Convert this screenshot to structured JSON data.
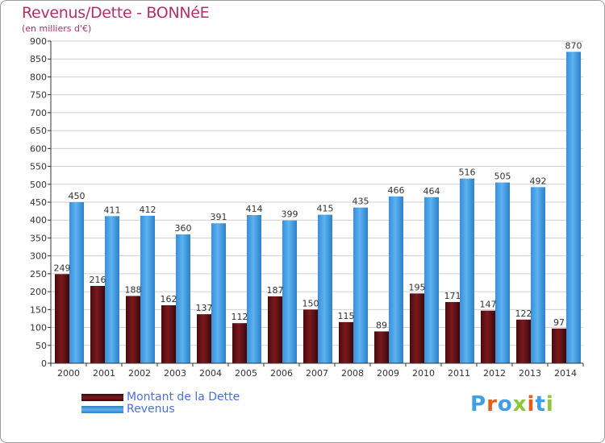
{
  "header": {
    "title": "Revenus/Dette - BONNéE",
    "subtitle": "(en milliers d'€)"
  },
  "legend": {
    "items": [
      {
        "label": "Montant de la Dette",
        "color": "#6b0f14"
      },
      {
        "label": "Revenus",
        "color": "#4aa3e8"
      }
    ]
  },
  "logo": {
    "text": "Proxiti",
    "letter_colors": [
      "#3f9ee8",
      "#e35d1b",
      "#3f9ee8",
      "#8cc63f",
      "#e35d1b",
      "#3f9ee8",
      "#8cc63f"
    ]
  },
  "chart_data": {
    "type": "bar",
    "title": "Revenus/Dette - BONNéE",
    "subtitle": "(en milliers d'€)",
    "categories": [
      "2000",
      "2001",
      "2002",
      "2003",
      "2004",
      "2005",
      "2006",
      "2007",
      "2008",
      "2009",
      "2010",
      "2011",
      "2012",
      "2013",
      "2014"
    ],
    "series": [
      {
        "name": "Montant de la Dette",
        "color": "#6b0f14",
        "values": [
          249,
          216,
          188,
          162,
          137,
          112,
          187,
          150,
          115,
          89,
          195,
          171,
          147,
          122,
          97
        ]
      },
      {
        "name": "Revenus",
        "color": "#4aa3e8",
        "values": [
          450,
          411,
          412,
          360,
          391,
          414,
          399,
          415,
          435,
          466,
          464,
          516,
          505,
          492,
          870
        ]
      }
    ],
    "ylim": [
      0,
      900
    ],
    "yticks": [
      0,
      50,
      100,
      150,
      200,
      250,
      300,
      350,
      400,
      450,
      500,
      550,
      600,
      650,
      700,
      750,
      800,
      850,
      900
    ],
    "grid": true,
    "legend": "bottom-left"
  }
}
